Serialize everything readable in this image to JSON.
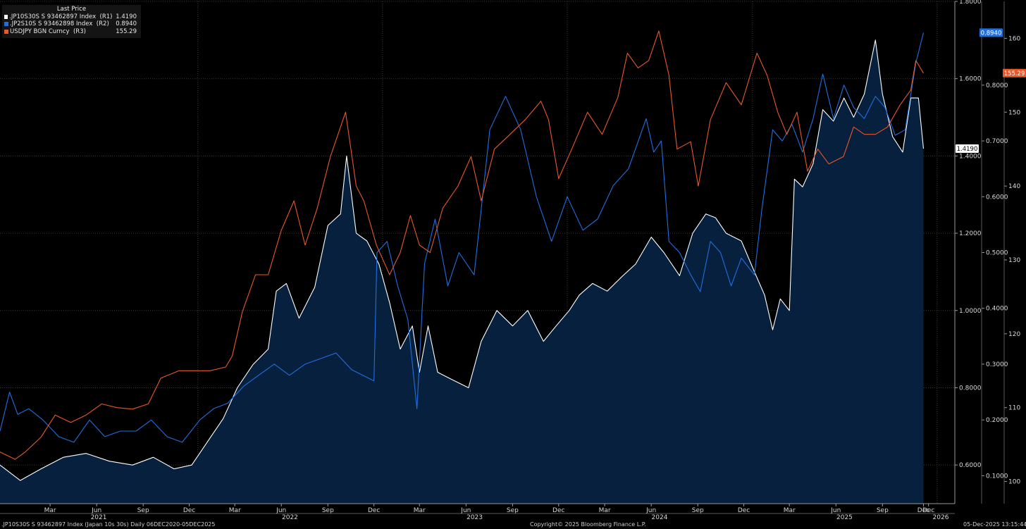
{
  "legend": {
    "header": "Last Price",
    "items": [
      {
        "name": ".JP10S30S S 93462897 Index  (R1)",
        "value": "1.4190",
        "color": "#ffffff"
      },
      {
        "name": ".JP2S10S S 93462898 Index  (R2)",
        "value": "0.8940",
        "color": "#1f6fe0"
      },
      {
        "name": "USDJPY BGN Curncy  (R3)",
        "value": "155.29",
        "color": "#e8582a"
      }
    ]
  },
  "footer": {
    "left": ".JP10S30S S 93462897 Index (Japan 10s 30s) Daily 06DEC2020-05DEC2025",
    "center": "Copyright© 2025 Bloomberg Finance L.P.",
    "right": "05-Dec-2025 13:15:44"
  },
  "chart_data": {
    "type": "line",
    "x_range": [
      "2020-12-06",
      "2025-12-05"
    ],
    "x_months": [
      "Mar",
      "Jun",
      "Sep",
      "Dec",
      "Mar",
      "Jun",
      "Sep",
      "Dec",
      "Mar",
      "Jun",
      "Sep",
      "Dec",
      "Mar",
      "Jun",
      "Sep",
      "Dec",
      "Mar",
      "Jun",
      "Sep",
      "Dec",
      "Dec"
    ],
    "x_years": [
      "2021",
      "2022",
      "2023",
      "2024",
      "2025",
      "2026"
    ],
    "axes": {
      "R1": {
        "ylim": [
          0.5,
          1.8
        ],
        "ticks": [
          "1.8000",
          "1.6000",
          "1.4000",
          "1.2000",
          "1.0000",
          "0.8000",
          "0.6000"
        ]
      },
      "R2": {
        "ylim": [
          0.05,
          0.95
        ],
        "ticks": [
          "0.8000",
          "0.7000",
          "0.6000",
          "0.5000",
          "0.4000",
          "0.3000",
          "0.2000",
          "0.1000"
        ]
      },
      "R3": {
        "ylim": [
          97,
          165
        ],
        "ticks": [
          "160",
          "150",
          "140",
          "130",
          "120",
          "110",
          "100"
        ]
      }
    },
    "last_value_tags": [
      {
        "series": "R2",
        "text": "0.8940",
        "color": "#1f6fe0"
      },
      {
        "series": "R3",
        "text": "155.29",
        "color": "#e8582a"
      },
      {
        "series": "R1",
        "text": "1.4190",
        "color": "#ffffff"
      }
    ],
    "series": [
      {
        "name": ".JP10S30S S 93462897 Index  (R1)",
        "axis": "R1",
        "style": "line+area",
        "color": "#ffffff",
        "fill": "#06203d",
        "points": [
          [
            "2020-12-06",
            0.6
          ],
          [
            "2021-01-15",
            0.56
          ],
          [
            "2021-02-25",
            0.59
          ],
          [
            "2021-04-10",
            0.62
          ],
          [
            "2021-05-25",
            0.63
          ],
          [
            "2021-07-10",
            0.61
          ],
          [
            "2021-08-25",
            0.6
          ],
          [
            "2021-10-05",
            0.62
          ],
          [
            "2021-11-15",
            0.59
          ],
          [
            "2021-12-20",
            0.6
          ],
          [
            "2022-01-20",
            0.66
          ],
          [
            "2022-02-20",
            0.72
          ],
          [
            "2022-03-20",
            0.8
          ],
          [
            "2022-04-20",
            0.86
          ],
          [
            "2022-05-20",
            0.9
          ],
          [
            "2022-06-05",
            1.05
          ],
          [
            "2022-06-25",
            1.07
          ],
          [
            "2022-07-20",
            0.98
          ],
          [
            "2022-08-20",
            1.06
          ],
          [
            "2022-09-15",
            1.22
          ],
          [
            "2022-10-10",
            1.25
          ],
          [
            "2022-10-22",
            1.4
          ],
          [
            "2022-11-10",
            1.2
          ],
          [
            "2022-12-01",
            1.18
          ],
          [
            "2022-12-25",
            1.12
          ],
          [
            "2023-01-15",
            1.02
          ],
          [
            "2023-02-05",
            0.9
          ],
          [
            "2023-03-01",
            0.96
          ],
          [
            "2023-03-15",
            0.84
          ],
          [
            "2023-04-01",
            0.96
          ],
          [
            "2023-04-20",
            0.84
          ],
          [
            "2023-05-20",
            0.82
          ],
          [
            "2023-06-20",
            0.8
          ],
          [
            "2023-07-15",
            0.92
          ],
          [
            "2023-08-15",
            1.0
          ],
          [
            "2023-09-15",
            0.96
          ],
          [
            "2023-10-15",
            1.0
          ],
          [
            "2023-11-15",
            0.92
          ],
          [
            "2023-12-10",
            0.96
          ],
          [
            "2024-01-05",
            1.0
          ],
          [
            "2024-01-25",
            1.04
          ],
          [
            "2024-02-20",
            1.07
          ],
          [
            "2024-03-20",
            1.05
          ],
          [
            "2024-04-20",
            1.09
          ],
          [
            "2024-05-15",
            1.12
          ],
          [
            "2024-06-15",
            1.19
          ],
          [
            "2024-07-10",
            1.15
          ],
          [
            "2024-08-10",
            1.09
          ],
          [
            "2024-09-05",
            1.2
          ],
          [
            "2024-10-01",
            1.25
          ],
          [
            "2024-10-20",
            1.24
          ],
          [
            "2024-11-10",
            1.2
          ],
          [
            "2024-12-10",
            1.18
          ],
          [
            "2025-01-05",
            1.1
          ],
          [
            "2025-01-25",
            1.04
          ],
          [
            "2025-02-10",
            0.95
          ],
          [
            "2025-02-25",
            1.03
          ],
          [
            "2025-03-15",
            1.0
          ],
          [
            "2025-03-25",
            1.34
          ],
          [
            "2025-04-10",
            1.32
          ],
          [
            "2025-05-01",
            1.38
          ],
          [
            "2025-05-20",
            1.52
          ],
          [
            "2025-06-10",
            1.49
          ],
          [
            "2025-07-01",
            1.55
          ],
          [
            "2025-07-20",
            1.5
          ],
          [
            "2025-08-10",
            1.56
          ],
          [
            "2025-09-01",
            1.7
          ],
          [
            "2025-09-15",
            1.56
          ],
          [
            "2025-10-05",
            1.45
          ],
          [
            "2025-10-25",
            1.41
          ],
          [
            "2025-11-10",
            1.55
          ],
          [
            "2025-11-25",
            1.55
          ],
          [
            "2025-12-05",
            1.419
          ]
        ]
      },
      {
        "name": ".JP2S10S S 93462898 Index  (R2)",
        "axis": "R2",
        "color": "#1f6fe0",
        "points": [
          [
            "2020-12-06",
            0.18
          ],
          [
            "2020-12-25",
            0.25
          ],
          [
            "2021-01-10",
            0.21
          ],
          [
            "2021-02-01",
            0.22
          ],
          [
            "2021-03-01",
            0.2
          ],
          [
            "2021-04-01",
            0.17
          ],
          [
            "2021-05-01",
            0.16
          ],
          [
            "2021-06-01",
            0.2
          ],
          [
            "2021-07-01",
            0.17
          ],
          [
            "2021-08-01",
            0.18
          ],
          [
            "2021-09-01",
            0.18
          ],
          [
            "2021-10-01",
            0.2
          ],
          [
            "2021-11-01",
            0.17
          ],
          [
            "2021-12-01",
            0.16
          ],
          [
            "2022-01-05",
            0.2
          ],
          [
            "2022-02-01",
            0.22
          ],
          [
            "2022-03-01",
            0.23
          ],
          [
            "2022-04-01",
            0.26
          ],
          [
            "2022-05-01",
            0.28
          ],
          [
            "2022-06-01",
            0.3
          ],
          [
            "2022-07-01",
            0.28
          ],
          [
            "2022-08-01",
            0.3
          ],
          [
            "2022-09-01",
            0.31
          ],
          [
            "2022-10-01",
            0.32
          ],
          [
            "2022-11-01",
            0.29
          ],
          [
            "2022-12-15",
            0.27
          ],
          [
            "2022-12-21",
            0.5
          ],
          [
            "2023-01-10",
            0.52
          ],
          [
            "2023-01-31",
            0.44
          ],
          [
            "2023-02-20",
            0.38
          ],
          [
            "2023-03-10",
            0.22
          ],
          [
            "2023-03-25",
            0.48
          ],
          [
            "2023-04-15",
            0.56
          ],
          [
            "2023-05-10",
            0.44
          ],
          [
            "2023-06-01",
            0.5
          ],
          [
            "2023-07-01",
            0.46
          ],
          [
            "2023-08-01",
            0.72
          ],
          [
            "2023-09-01",
            0.78
          ],
          [
            "2023-10-01",
            0.72
          ],
          [
            "2023-11-01",
            0.6
          ],
          [
            "2023-12-01",
            0.52
          ],
          [
            "2024-01-01",
            0.6
          ],
          [
            "2024-02-01",
            0.54
          ],
          [
            "2024-03-01",
            0.56
          ],
          [
            "2024-04-01",
            0.62
          ],
          [
            "2024-05-01",
            0.65
          ],
          [
            "2024-06-05",
            0.74
          ],
          [
            "2024-06-20",
            0.68
          ],
          [
            "2024-07-05",
            0.7
          ],
          [
            "2024-07-20",
            0.52
          ],
          [
            "2024-08-10",
            0.5
          ],
          [
            "2024-09-01",
            0.46
          ],
          [
            "2024-09-20",
            0.43
          ],
          [
            "2024-10-10",
            0.52
          ],
          [
            "2024-10-30",
            0.5
          ],
          [
            "2024-11-20",
            0.44
          ],
          [
            "2024-12-10",
            0.49
          ],
          [
            "2025-01-05",
            0.46
          ],
          [
            "2025-01-20",
            0.58
          ],
          [
            "2025-02-10",
            0.72
          ],
          [
            "2025-03-01",
            0.7
          ],
          [
            "2025-03-20",
            0.73
          ],
          [
            "2025-04-10",
            0.68
          ],
          [
            "2025-05-01",
            0.74
          ],
          [
            "2025-05-20",
            0.82
          ],
          [
            "2025-06-10",
            0.74
          ],
          [
            "2025-07-01",
            0.8
          ],
          [
            "2025-07-20",
            0.76
          ],
          [
            "2025-08-10",
            0.74
          ],
          [
            "2025-09-01",
            0.78
          ],
          [
            "2025-09-20",
            0.76
          ],
          [
            "2025-10-10",
            0.71
          ],
          [
            "2025-10-30",
            0.72
          ],
          [
            "2025-11-20",
            0.84
          ],
          [
            "2025-12-05",
            0.894
          ]
        ]
      },
      {
        "name": "USDJPY BGN Curncy  (R3)",
        "axis": "R3",
        "color": "#e8582a",
        "points": [
          [
            "2020-12-06",
            104
          ],
          [
            "2021-01-05",
            103
          ],
          [
            "2021-01-25",
            104
          ],
          [
            "2021-02-25",
            106
          ],
          [
            "2021-03-25",
            109
          ],
          [
            "2021-04-25",
            108
          ],
          [
            "2021-05-25",
            109
          ],
          [
            "2021-06-25",
            110.5
          ],
          [
            "2021-07-25",
            110
          ],
          [
            "2021-08-25",
            109.8
          ],
          [
            "2021-09-25",
            110.5
          ],
          [
            "2021-10-20",
            114
          ],
          [
            "2021-11-25",
            115
          ],
          [
            "2021-12-25",
            115
          ],
          [
            "2022-01-25",
            115
          ],
          [
            "2022-02-25",
            115.5
          ],
          [
            "2022-03-10",
            117
          ],
          [
            "2022-03-30",
            123
          ],
          [
            "2022-04-25",
            128
          ],
          [
            "2022-05-20",
            128
          ],
          [
            "2022-06-15",
            134
          ],
          [
            "2022-07-10",
            138
          ],
          [
            "2022-08-01",
            132
          ],
          [
            "2022-08-25",
            137
          ],
          [
            "2022-09-20",
            144
          ],
          [
            "2022-10-20",
            150
          ],
          [
            "2022-11-10",
            140
          ],
          [
            "2022-11-25",
            138
          ],
          [
            "2022-12-20",
            132
          ],
          [
            "2023-01-15",
            128
          ],
          [
            "2023-02-05",
            131
          ],
          [
            "2023-02-25",
            136
          ],
          [
            "2023-03-15",
            132
          ],
          [
            "2023-04-05",
            131
          ],
          [
            "2023-04-30",
            137
          ],
          [
            "2023-05-30",
            140
          ],
          [
            "2023-06-25",
            144
          ],
          [
            "2023-07-15",
            138
          ],
          [
            "2023-08-10",
            145
          ],
          [
            "2023-09-10",
            147
          ],
          [
            "2023-10-10",
            149
          ],
          [
            "2023-11-10",
            151.5
          ],
          [
            "2023-11-25",
            149
          ],
          [
            "2023-12-15",
            141
          ],
          [
            "2024-01-10",
            145
          ],
          [
            "2024-02-10",
            150
          ],
          [
            "2024-03-10",
            147
          ],
          [
            "2024-04-10",
            152
          ],
          [
            "2024-04-29",
            158
          ],
          [
            "2024-05-20",
            156
          ],
          [
            "2024-06-10",
            157
          ],
          [
            "2024-06-30",
            161
          ],
          [
            "2024-07-20",
            155
          ],
          [
            "2024-08-05",
            145
          ],
          [
            "2024-09-01",
            146
          ],
          [
            "2024-09-16",
            140
          ],
          [
            "2024-10-10",
            149
          ],
          [
            "2024-11-10",
            154
          ],
          [
            "2024-12-10",
            151
          ],
          [
            "2025-01-10",
            158
          ],
          [
            "2025-01-30",
            155
          ],
          [
            "2025-02-20",
            150
          ],
          [
            "2025-03-10",
            147
          ],
          [
            "2025-03-30",
            150
          ],
          [
            "2025-04-20",
            142
          ],
          [
            "2025-05-10",
            145
          ],
          [
            "2025-06-01",
            143
          ],
          [
            "2025-06-30",
            144
          ],
          [
            "2025-07-20",
            148
          ],
          [
            "2025-08-10",
            147
          ],
          [
            "2025-09-01",
            147
          ],
          [
            "2025-09-25",
            148
          ],
          [
            "2025-10-20",
            151
          ],
          [
            "2025-11-10",
            153
          ],
          [
            "2025-11-20",
            157
          ],
          [
            "2025-12-05",
            155.29
          ]
        ]
      }
    ]
  }
}
